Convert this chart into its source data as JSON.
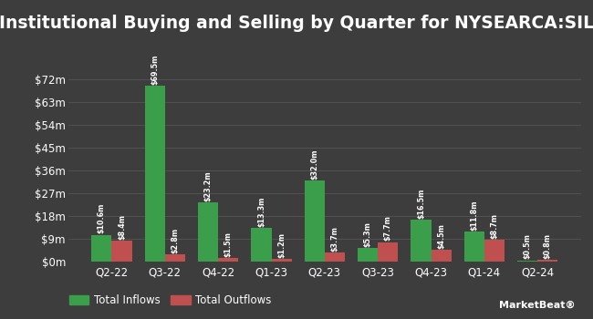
{
  "title": "Institutional Buying and Selling by Quarter for NYSEARCA:SIL",
  "quarters": [
    "Q2-22",
    "Q3-22",
    "Q4-22",
    "Q1-23",
    "Q2-23",
    "Q3-23",
    "Q4-23",
    "Q1-24",
    "Q2-24"
  ],
  "inflows": [
    10.6,
    69.5,
    23.2,
    13.3,
    32.0,
    5.3,
    16.5,
    11.8,
    0.5
  ],
  "outflows": [
    8.4,
    2.8,
    1.5,
    1.2,
    3.7,
    7.7,
    4.5,
    8.7,
    0.8
  ],
  "inflow_labels": [
    "$10.6m",
    "$69.5m",
    "$23.2m",
    "$13.3m",
    "$32.0m",
    "$5.3m",
    "$16.5m",
    "$11.8m",
    "$0.5m"
  ],
  "outflow_labels": [
    "$8.4m",
    "$2.8m",
    "$1.5m",
    "$1.2m",
    "$3.7m",
    "$7.7m",
    "$4.5m",
    "$8.7m",
    "$0.8m"
  ],
  "inflow_color": "#3a9e4a",
  "outflow_color": "#c05050",
  "bg_color": "#3d3d3d",
  "text_color": "#ffffff",
  "grid_color": "#555555",
  "yticks": [
    0,
    9,
    18,
    27,
    36,
    45,
    54,
    63,
    72
  ],
  "ytick_labels": [
    "$0m",
    "$9m",
    "$18m",
    "$27m",
    "$36m",
    "$45m",
    "$54m",
    "$63m",
    "$72m"
  ],
  "ylim": [
    0,
    78
  ],
  "legend_inflow": "Total Inflows",
  "legend_outflow": "Total Outflows",
  "bar_width": 0.38,
  "title_fontsize": 13.5,
  "label_fontsize": 5.8,
  "tick_fontsize": 8.5,
  "legend_fontsize": 8.5
}
